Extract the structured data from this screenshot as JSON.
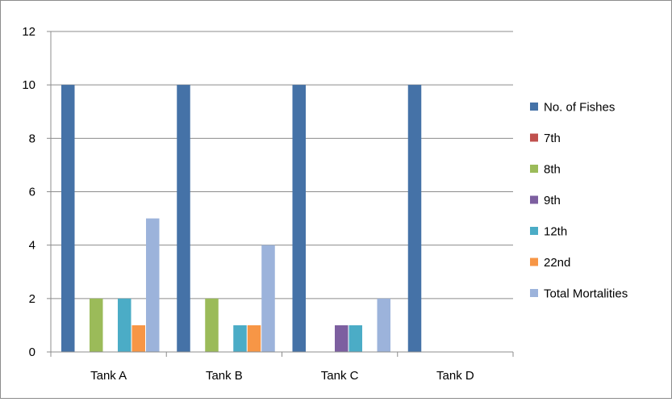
{
  "chart_data": {
    "type": "bar",
    "categories": [
      "Tank A",
      "Tank B",
      "Tank C",
      "Tank D"
    ],
    "series": [
      {
        "name": "No. of Fishes",
        "color": "#4572A7",
        "values": [
          10,
          10,
          10,
          10
        ]
      },
      {
        "name": "7th",
        "color": "#C0504D",
        "values": [
          0,
          0,
          0,
          0
        ]
      },
      {
        "name": "8th",
        "color": "#9BBB59",
        "values": [
          2,
          2,
          0,
          0
        ]
      },
      {
        "name": "9th",
        "color": "#7D5FA0",
        "values": [
          0,
          0,
          1,
          0
        ]
      },
      {
        "name": "12th",
        "color": "#4BACC6",
        "values": [
          2,
          1,
          1,
          0
        ]
      },
      {
        "name": "22nd",
        "color": "#F79646",
        "values": [
          1,
          1,
          0,
          0
        ]
      },
      {
        "name": "Total Mortalities",
        "color": "#9CB3DB",
        "values": [
          5,
          4,
          2,
          0
        ]
      }
    ],
    "ylim": [
      0,
      12
    ],
    "yticks": [
      "0",
      "2",
      "4",
      "6",
      "8",
      "10",
      "12"
    ],
    "grid": true,
    "legend_position": "right",
    "title": "",
    "xlabel": "",
    "ylabel": ""
  }
}
